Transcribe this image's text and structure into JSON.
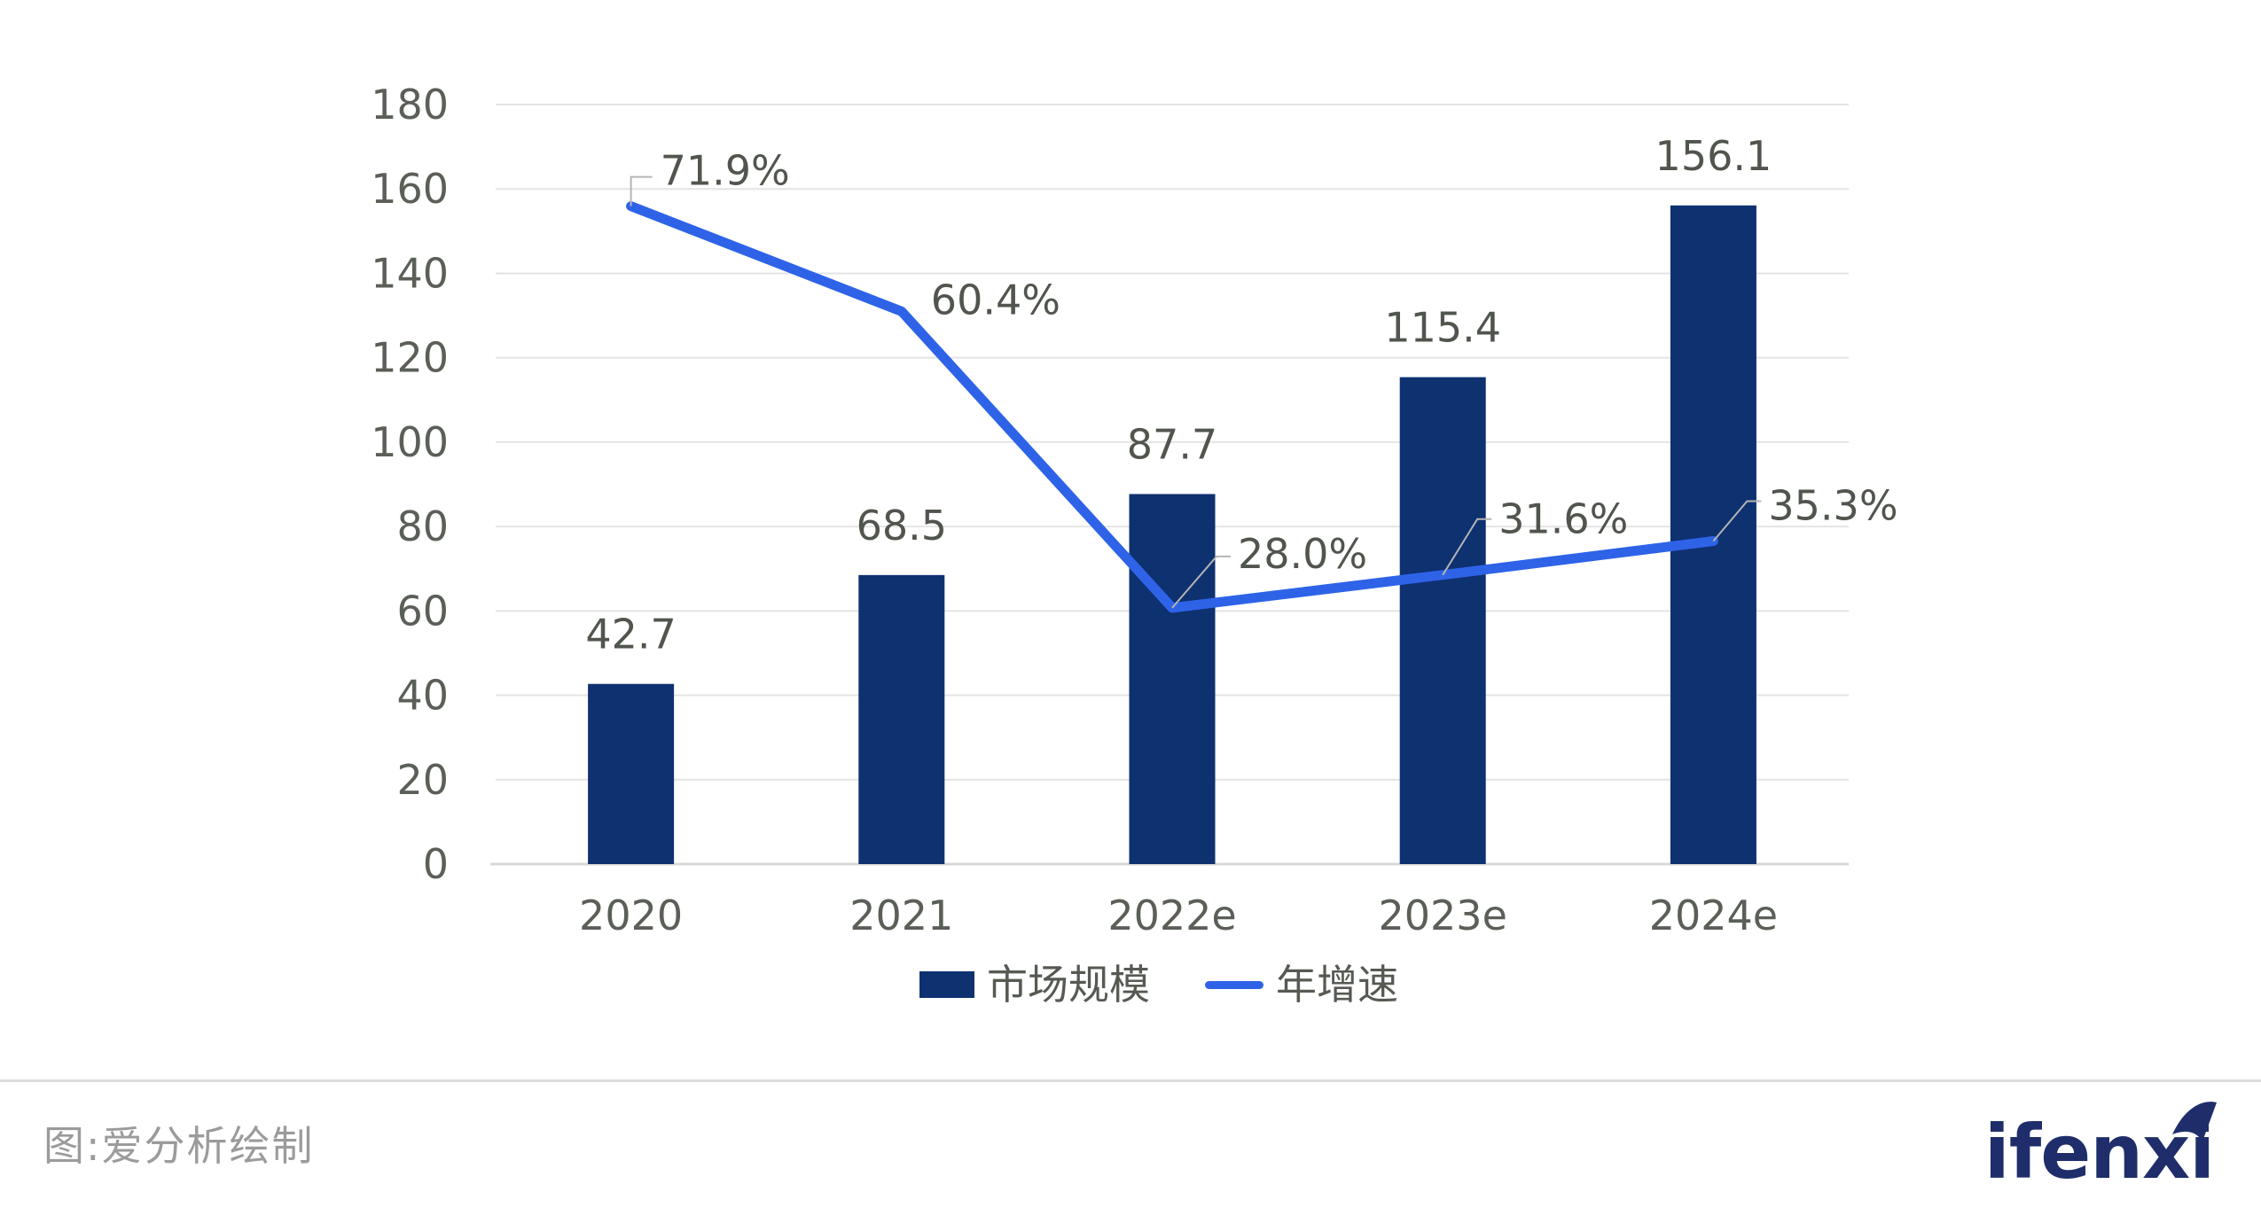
{
  "chart_data": {
    "type": "bar+line",
    "categories": [
      "2020",
      "2021",
      "2022e",
      "2023e",
      "2024e"
    ],
    "series": [
      {
        "name": "市场规模",
        "type": "bar",
        "axis": "left",
        "color": "#0e3170",
        "values": [
          42.7,
          68.5,
          87.7,
          115.4,
          156.1
        ],
        "labels": [
          "42.7",
          "68.5",
          "87.7",
          "115.4",
          "156.1"
        ]
      },
      {
        "name": "年增速",
        "type": "line",
        "axis": "right-hidden",
        "color": "#2e63e8",
        "values": [
          71.9,
          60.4,
          28.0,
          31.6,
          35.3
        ],
        "labels": [
          "71.9%",
          "60.4%",
          "28.0%",
          "31.6%",
          "35.3%"
        ]
      }
    ],
    "title": "",
    "xlabel": "",
    "ylabel": "",
    "yticks": [
      "0",
      "20",
      "40",
      "60",
      "80",
      "100",
      "120",
      "140",
      "160",
      "180"
    ],
    "ylim": [
      0,
      180
    ],
    "y2lim_estimate": [
      0,
      83
    ],
    "grid": "horizontal",
    "legend_position": "bottom-center"
  },
  "legend": {
    "items": [
      {
        "label": "市场规模",
        "marker": "square",
        "color": "#0e3170"
      },
      {
        "label": "年增速",
        "marker": "line",
        "color": "#2e63e8"
      }
    ]
  },
  "footer": {
    "caption": "图:爱分析绘制",
    "logo_text": "ifenxi"
  },
  "colors": {
    "background": "#ffffff",
    "bar": "#0e3170",
    "line": "#2e63e8",
    "axis_text": "#5a5f57",
    "data_label": "#50554d",
    "grid": "#e4e4e4",
    "baseline": "#d8d8d8",
    "leader": "#b5b5b5",
    "divider": "#dcdcdc",
    "caption": "#9b9b9b",
    "logo": "#1f2e6b"
  }
}
